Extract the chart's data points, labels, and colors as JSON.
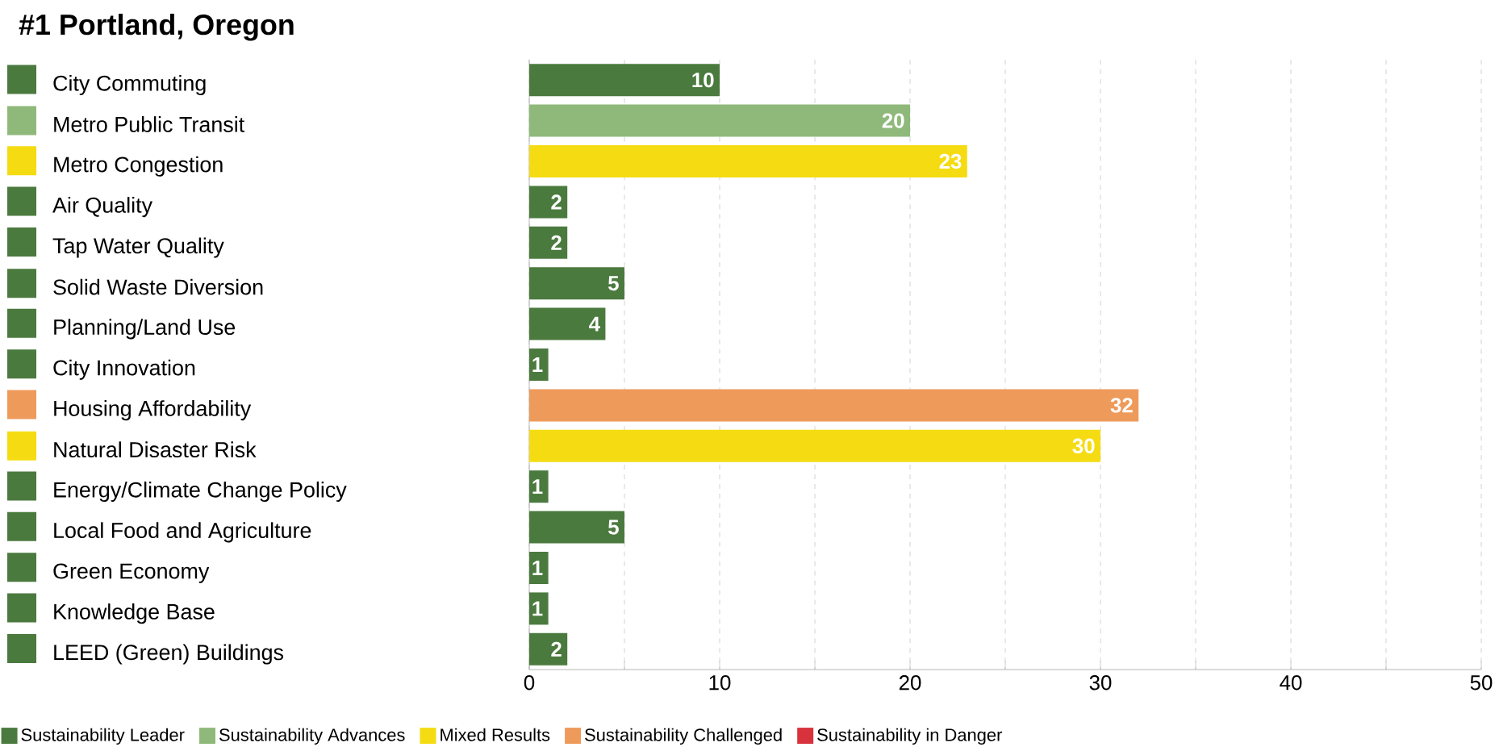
{
  "chart_data": {
    "type": "bar",
    "orientation": "horizontal",
    "title": "#1 Portland, Oregon",
    "categories": [
      "City Commuting",
      "Metro Public Transit",
      "Metro Congestion",
      "Air Quality",
      "Tap Water Quality",
      "Solid Waste Diversion",
      "Planning/Land Use",
      "City Innovation",
      "Housing Affordability",
      "Natural Disaster Risk",
      "Energy/Climate Change Policy",
      "Local Food and Agriculture",
      "Green Economy",
      "Knowledge Base",
      "LEED (Green) Buildings"
    ],
    "series": [
      {
        "name": "Sustainability Leader",
        "color": "#4b7a3e",
        "values": [
          10,
          null,
          null,
          2,
          2,
          5,
          4,
          1,
          null,
          null,
          1,
          5,
          1,
          1,
          2
        ]
      },
      {
        "name": "Sustainability Advances",
        "color": "#8fb97b",
        "values": [
          null,
          20,
          null,
          null,
          null,
          null,
          null,
          null,
          null,
          null,
          null,
          null,
          null,
          null,
          null
        ]
      },
      {
        "name": "Mixed Results",
        "color": "#f5dc12",
        "values": [
          null,
          null,
          23,
          null,
          null,
          null,
          null,
          null,
          null,
          30,
          null,
          null,
          null,
          null,
          null
        ]
      },
      {
        "name": "Sustainability Challenged",
        "color": "#ee9a5a",
        "values": [
          null,
          null,
          null,
          null,
          null,
          null,
          null,
          null,
          32,
          null,
          null,
          null,
          null,
          null,
          null
        ]
      },
      {
        "name": "Sustainability in Danger",
        "color": "#d8323c",
        "values": [
          null,
          null,
          null,
          null,
          null,
          null,
          null,
          null,
          null,
          null,
          null,
          null,
          null,
          null,
          null
        ]
      }
    ],
    "xlim": [
      0,
      50
    ],
    "xticks": [
      0,
      {
        "value": 5,
        "label": null
      },
      10,
      {
        "value": 15,
        "label": null
      },
      20,
      {
        "value": 25,
        "label": null
      },
      30,
      {
        "value": 35,
        "label": null
      },
      40,
      {
        "value": 45,
        "label": null
      },
      50
    ],
    "grid": "x",
    "data_labels": true,
    "legend": "bottom"
  }
}
